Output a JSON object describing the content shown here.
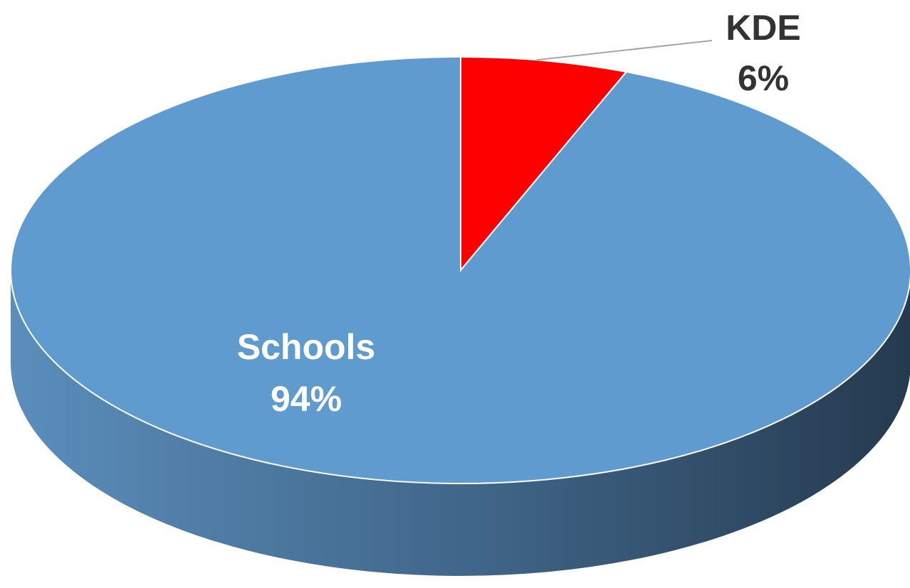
{
  "chart_data": {
    "type": "pie",
    "style": "3d",
    "slices": [
      {
        "label": "KDE",
        "percent_label": "6%",
        "value": 6,
        "color": "#ff0000",
        "label_color": "#333333",
        "label_placement": "outside-top-right-with-leader"
      },
      {
        "label": "Schools",
        "percent_label": "94%",
        "value": 94,
        "color": "#5f9bce",
        "side_color_light": "#5b8ebc",
        "side_color_dark": "#253a4f",
        "label_color": "#ffffff",
        "label_placement": "inside"
      }
    ],
    "title": "",
    "legend": "none"
  }
}
